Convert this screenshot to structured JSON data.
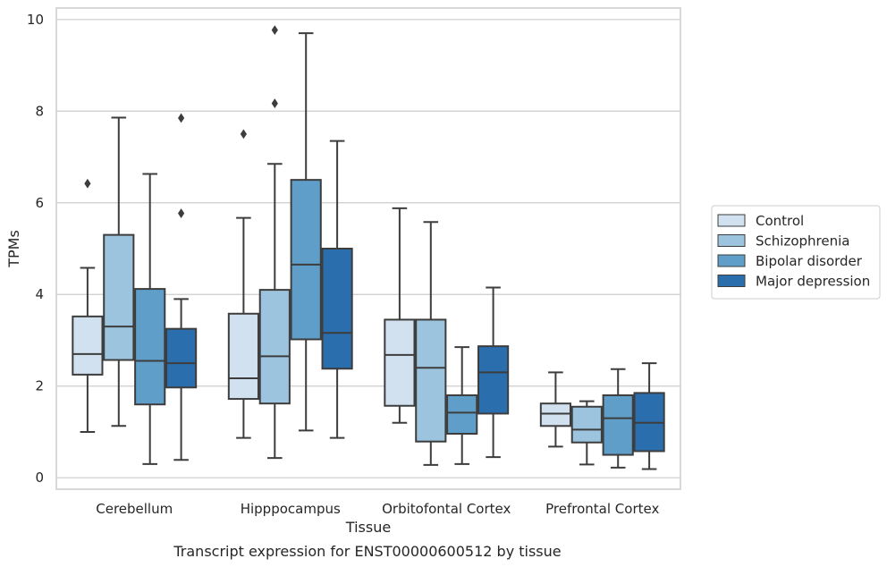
{
  "chart_data": {
    "type": "boxplot",
    "caption": "Transcript expression for ENST00000600512 by tissue",
    "xlabel": "Tissue",
    "ylabel": "TPMs",
    "ylim": [
      -0.25,
      10.25
    ],
    "yticks": [
      0,
      2,
      4,
      6,
      8,
      10
    ],
    "ytick_labels": [
      "0",
      "2",
      "4",
      "6",
      "8",
      "10"
    ],
    "grid": "horizontal",
    "legend_position": "right",
    "categories": [
      "Cerebellum",
      "Hipppocampus",
      "Orbitofontal Cortex",
      "Prefrontal Cortex"
    ],
    "series": [
      {
        "name": "Control",
        "color": "#d1e1f0",
        "boxes": [
          {
            "whisker_low": 1.0,
            "q1": 2.25,
            "median": 2.7,
            "q3": 3.52,
            "whisker_high": 4.58,
            "outliers": [
              6.42
            ]
          },
          {
            "whisker_low": 0.87,
            "q1": 1.72,
            "median": 2.17,
            "q3": 3.58,
            "whisker_high": 5.67,
            "outliers": [
              7.5
            ]
          },
          {
            "whisker_low": 1.2,
            "q1": 1.57,
            "median": 2.68,
            "q3": 3.45,
            "whisker_high": 5.88,
            "outliers": []
          },
          {
            "whisker_low": 0.68,
            "q1": 1.13,
            "median": 1.4,
            "q3": 1.62,
            "whisker_high": 2.3,
            "outliers": []
          }
        ]
      },
      {
        "name": "Schizophrenia",
        "color": "#9dc4de",
        "boxes": [
          {
            "whisker_low": 1.13,
            "q1": 2.57,
            "median": 3.3,
            "q3": 5.3,
            "whisker_high": 7.86,
            "outliers": []
          },
          {
            "whisker_low": 0.43,
            "q1": 1.62,
            "median": 2.65,
            "q3": 4.1,
            "whisker_high": 6.85,
            "outliers": [
              8.17,
              9.77
            ]
          },
          {
            "whisker_low": 0.28,
            "q1": 0.79,
            "median": 2.4,
            "q3": 3.45,
            "whisker_high": 5.58,
            "outliers": []
          },
          {
            "whisker_low": 0.29,
            "q1": 0.77,
            "median": 1.05,
            "q3": 1.55,
            "whisker_high": 1.67,
            "outliers": []
          }
        ]
      },
      {
        "name": "Bipolar disorder",
        "color": "#5e9ec9",
        "boxes": [
          {
            "whisker_low": 0.3,
            "q1": 1.6,
            "median": 2.55,
            "q3": 4.12,
            "whisker_high": 6.63,
            "outliers": []
          },
          {
            "whisker_low": 1.03,
            "q1": 3.02,
            "median": 4.65,
            "q3": 6.5,
            "whisker_high": 9.7,
            "outliers": []
          },
          {
            "whisker_low": 0.3,
            "q1": 0.96,
            "median": 1.42,
            "q3": 1.8,
            "whisker_high": 2.85,
            "outliers": []
          },
          {
            "whisker_low": 0.22,
            "q1": 0.5,
            "median": 1.3,
            "q3": 1.8,
            "whisker_high": 2.37,
            "outliers": []
          }
        ]
      },
      {
        "name": "Major depression",
        "color": "#2b6ead",
        "boxes": [
          {
            "whisker_low": 0.39,
            "q1": 1.97,
            "median": 2.5,
            "q3": 3.25,
            "whisker_high": 3.9,
            "outliers": [
              5.77,
              7.85
            ]
          },
          {
            "whisker_low": 0.87,
            "q1": 2.38,
            "median": 3.16,
            "q3": 5.0,
            "whisker_high": 7.35,
            "outliers": []
          },
          {
            "whisker_low": 0.45,
            "q1": 1.4,
            "median": 2.3,
            "q3": 2.87,
            "whisker_high": 4.15,
            "outliers": []
          },
          {
            "whisker_low": 0.19,
            "q1": 0.58,
            "median": 1.2,
            "q3": 1.85,
            "whisker_high": 2.5,
            "outliers": []
          }
        ]
      }
    ]
  },
  "style": {
    "grid_color": "#cccccc",
    "frame_color": "#cccccc",
    "line_color": "#3d3d3d"
  }
}
